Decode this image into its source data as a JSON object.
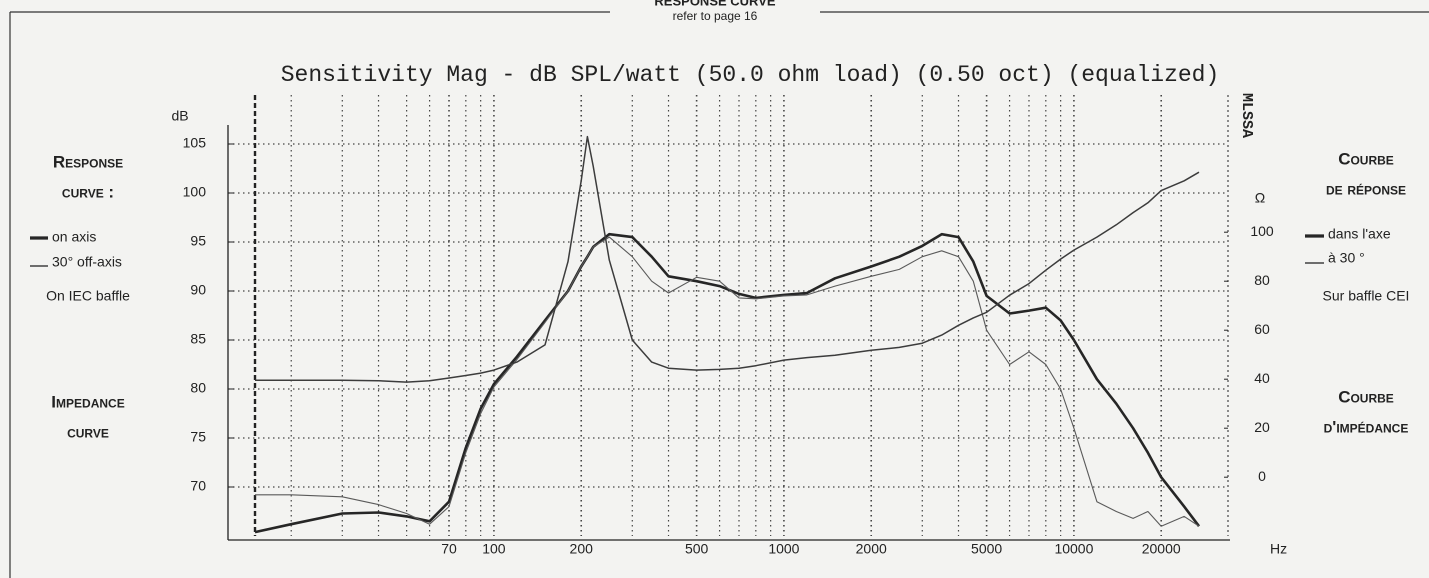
{
  "header": {
    "title": "RESPONSE CURVE",
    "subtitle": "refer to page 16"
  },
  "left_text": {
    "heading_1": "Response",
    "heading_2": "curve :",
    "baffle": "On IEC baffle",
    "impedance_1": "Impedance",
    "impedance_2": "curve"
  },
  "right_text": {
    "heading_1": "Courbe",
    "heading_2": "de réponse",
    "on_axis": "dans l'axe",
    "off_axis": "à 30 °",
    "baffle": "Sur baffle CEI",
    "impedance_1": "Courbe",
    "impedance_2": "d'impédance"
  },
  "chart_data": {
    "type": "line",
    "title": "Sensitivity Mag - dB SPL/watt (50.0 ohm load) (0.50 oct) (equalized)",
    "side_label": "MLSSA",
    "ylabel": "dB",
    "y2label": "Ω",
    "xlabel": "Hz",
    "xscale": "log",
    "grid": true,
    "x": [
      15,
      20,
      30,
      40,
      50,
      60,
      70,
      80,
      90,
      100,
      120,
      150,
      180,
      200,
      210,
      220,
      250,
      300,
      350,
      400,
      500,
      600,
      700,
      800,
      1000,
      1200,
      1500,
      2000,
      2500,
      3000,
      3500,
      4000,
      4500,
      5000,
      6000,
      7000,
      8000,
      9000,
      10000,
      12000,
      14000,
      16000,
      18000,
      20000,
      24000,
      27000
    ],
    "series": [
      {
        "name": "on axis",
        "color": "#262626",
        "width": 2.6,
        "values": [
          65.4,
          66.2,
          67.3,
          67.4,
          67,
          66.5,
          68.5,
          74,
          78,
          80.5,
          83.3,
          87,
          90,
          92.5,
          93.5,
          94.5,
          95.8,
          95.5,
          93.5,
          91.5,
          91,
          90.5,
          89.7,
          89.3,
          89.6,
          89.8,
          91.3,
          92.5,
          93.5,
          94.6,
          95.8,
          95.5,
          93,
          89.5,
          87.7,
          88,
          88.3,
          87,
          85,
          81,
          78.5,
          76,
          73.5,
          71,
          68,
          66
        ]
      },
      {
        "name": "30° off-axis",
        "color": "#5a5a5a",
        "width": 1.1,
        "values": [
          69.2,
          69.2,
          69,
          68.2,
          67.3,
          66.2,
          68,
          73.5,
          77.5,
          80.2,
          83,
          86.8,
          90,
          92.5,
          93.5,
          94.5,
          95.5,
          93.5,
          91,
          89.8,
          91.4,
          91,
          89.3,
          89.2,
          89.5,
          89.6,
          90.5,
          91.5,
          92.2,
          93.5,
          94.1,
          93.5,
          91,
          86,
          82.5,
          83.8,
          82.5,
          80,
          76,
          68.5,
          67.5,
          66.8,
          67.5,
          66,
          67,
          66
        ]
      },
      {
        "axis": "y2",
        "color": "#3c3c3c",
        "width": 1.5,
        "values": [
          39.6,
          39.6,
          39.6,
          39.4,
          38.8,
          39.4,
          40.5,
          41.5,
          42.5,
          43.7,
          47,
          54,
          88,
          121,
          139,
          127,
          88.6,
          56,
          47,
          44.5,
          43.7,
          44,
          44.5,
          45.5,
          47.8,
          48.8,
          49.8,
          51.8,
          53,
          54.7,
          58,
          62,
          65,
          67.3,
          74.3,
          79,
          84.5,
          89,
          92.7,
          98,
          103,
          108,
          112,
          117,
          121,
          124.5
        ]
      }
    ],
    "xlim": [
      15,
      27000
    ],
    "xticks": [
      70,
      100,
      200,
      500,
      1000,
      2000,
      5000,
      10000,
      20000
    ],
    "xgrid_minor": [
      20,
      30,
      40,
      50,
      60,
      80,
      90,
      300,
      400,
      600,
      700,
      800,
      900,
      3000,
      4000,
      6000,
      7000,
      8000,
      9000
    ],
    "ylim": [
      65,
      110
    ],
    "yticks": [
      70,
      75,
      80,
      85,
      90,
      95,
      100,
      105
    ],
    "y2lim": [
      -24,
      156
    ],
    "y2ticks": [
      0,
      20,
      40,
      60,
      80,
      100
    ]
  }
}
